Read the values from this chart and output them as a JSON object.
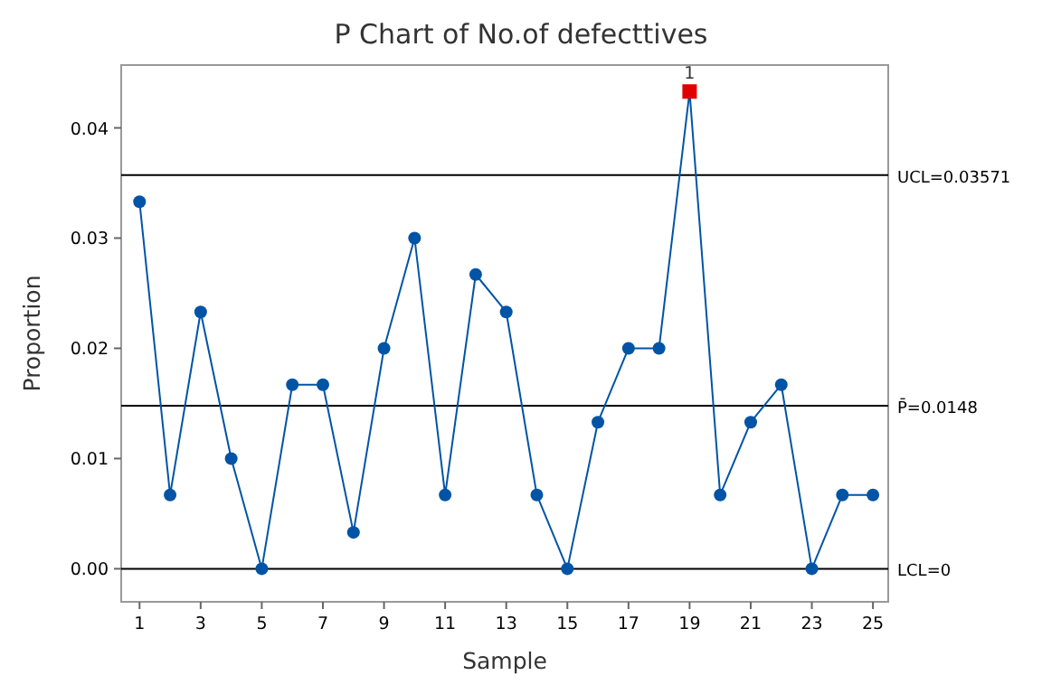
{
  "chart_data": {
    "type": "line",
    "title": "P Chart of No.of defecttives",
    "xlabel": "Sample",
    "ylabel": "Proportion",
    "x": [
      1,
      2,
      3,
      4,
      5,
      6,
      7,
      8,
      9,
      10,
      11,
      12,
      13,
      14,
      15,
      16,
      17,
      18,
      19,
      20,
      21,
      22,
      23,
      24,
      25
    ],
    "series": [
      {
        "color": "#0054a6",
        "values": [
          0.0333,
          0.0067,
          0.0233,
          0.01,
          0,
          0.0167,
          0.0167,
          0.0033,
          0.02,
          0.03,
          0.0067,
          0.0267,
          0.0233,
          0.0067,
          0,
          0.0133,
          0.02,
          0.02,
          0.0433,
          0.0067,
          0.0133,
          0.0167,
          0,
          0.0067,
          0.0067
        ],
        "colors": [
          "#0054a6",
          "#0054a6",
          "#0054a6",
          "#0054a6",
          "#0054a6",
          "#0054a6",
          "#0054a6",
          "#0054a6",
          "#0054a6",
          "#0054a6",
          "#0054a6",
          "#0054a6",
          "#0054a6",
          "#0054a6",
          "#0054a6",
          "#0054a6",
          "#0054a6",
          "#0054a6",
          "#e00000",
          "#0054a6",
          "#0054a6",
          "#0054a6",
          "#0054a6",
          "#0054a6",
          "#0054a6"
        ]
      }
    ],
    "xlim": [
      0.4,
      25.5
    ],
    "xticks": [
      1,
      3,
      5,
      7,
      9,
      11,
      13,
      15,
      17,
      19,
      21,
      23,
      25
    ],
    "ylim": [
      -0.003,
      0.0457
    ],
    "yticks": [
      {
        "value": 0,
        "label": "0.00"
      },
      {
        "value": 0.01,
        "label": "0.01"
      },
      {
        "value": 0.02,
        "label": "0.02"
      },
      {
        "value": 0.03,
        "label": "0.03"
      },
      {
        "value": 0.04,
        "label": "0.04"
      }
    ],
    "ref_lines": [
      {
        "axis": "y",
        "value": 0.03571,
        "label": "UCL=0.03571",
        "color": "#000000"
      },
      {
        "axis": "y",
        "value": 0.0148,
        "label": "P̄=0.0148",
        "color": "#000000"
      },
      {
        "axis": "y",
        "value": 0,
        "label": "LCL=0",
        "color": "#000000"
      }
    ],
    "annotations": [
      {
        "text": "1",
        "x": 19,
        "y": 0.0433
      }
    ],
    "marker": "circle",
    "grid": false
  }
}
